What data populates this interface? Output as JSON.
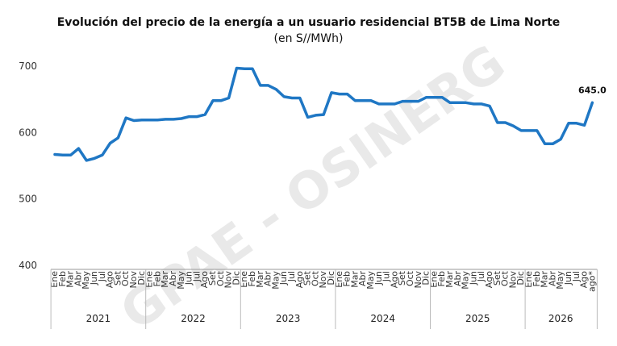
{
  "chart_data": {
    "type": "line",
    "title": "Evolución del precio de la energía a un usuario residencial BT5B de Lima Norte",
    "subtitle": "(en S//MWh)",
    "watermark": "GPAE - OSINERG",
    "ylim": [
      400,
      700
    ],
    "yticks": [
      400,
      500,
      600,
      700
    ],
    "grid": false,
    "legend": "none",
    "color": "#1f77c4",
    "month_labels": [
      "Ene",
      "Feb",
      "Mar",
      "Abr",
      "May",
      "Jun",
      "Jul",
      "Ago",
      "Set",
      "Oct",
      "Nov",
      "Dic"
    ],
    "years": [
      "2021",
      "2022",
      "2023",
      "2024",
      "2025",
      "2026"
    ],
    "last_label": "ago*",
    "annotation": "645.0",
    "values": [
      567,
      566,
      566,
      576,
      558,
      561,
      566,
      584,
      592,
      622,
      618,
      619,
      619,
      619,
      620,
      620,
      621,
      624,
      624,
      627,
      648,
      648,
      652,
      697,
      696,
      696,
      671,
      671,
      665,
      654,
      652,
      652,
      623,
      626,
      627,
      660,
      658,
      658,
      648,
      648,
      648,
      643,
      643,
      643,
      647,
      647,
      647,
      653,
      653,
      653,
      645,
      645,
      645,
      643,
      643,
      640,
      615,
      615,
      610,
      603,
      603,
      603,
      583,
      583,
      590,
      614,
      614,
      611,
      645
    ]
  }
}
